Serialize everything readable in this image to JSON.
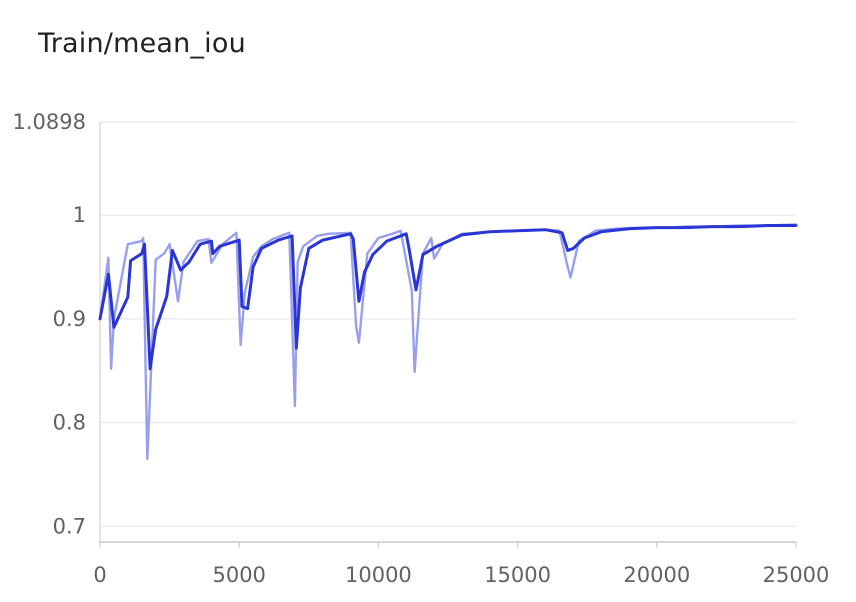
{
  "title": "Train/mean_iou",
  "chart_data": {
    "type": "line",
    "title": "Train/mean_iou",
    "xlabel": "",
    "ylabel": "",
    "xlim": [
      0,
      25000
    ],
    "ylim": [
      0.685,
      1.0898
    ],
    "x_ticks": [
      "0",
      "5000",
      "10000",
      "15000",
      "20000",
      "25000"
    ],
    "x_tick_values": [
      0,
      5000,
      10000,
      15000,
      20000,
      25000
    ],
    "y_ticks": [
      "1.0898",
      "1",
      "0.9",
      "0.8",
      "0.7"
    ],
    "y_tick_values": [
      1.0898,
      1.0,
      0.9,
      0.8,
      0.7
    ],
    "grid": true,
    "colors": {
      "raw": "#98a0ee",
      "smoothed": "#2b35d6",
      "grid": "#e4e4e4",
      "axis": "#c8c8c8"
    },
    "series": [
      {
        "role": "raw",
        "x": [
          0,
          300,
          400,
          500,
          1000,
          1500,
          1550,
          1700,
          1800,
          2000,
          2300,
          2500,
          2800,
          3000,
          3500,
          3900,
          4000,
          4400,
          4900,
          5050,
          5200,
          5500,
          5800,
          6200,
          6800,
          7000,
          7100,
          7300,
          7800,
          8200,
          9000,
          9200,
          9300,
          9600,
          10000,
          10500,
          10800,
          11200,
          11300,
          11600,
          11900,
          12000,
          12300,
          13000,
          14000,
          15000,
          16000,
          16500,
          16800,
          16900,
          17200,
          17800,
          18500,
          19500,
          20000,
          20500,
          21000,
          22000,
          23000,
          24000,
          25000
        ],
        "y": [
          0.9,
          0.959,
          0.852,
          0.9,
          0.972,
          0.975,
          0.978,
          0.765,
          0.828,
          0.957,
          0.963,
          0.972,
          0.917,
          0.955,
          0.975,
          0.977,
          0.954,
          0.972,
          0.983,
          0.875,
          0.925,
          0.96,
          0.97,
          0.977,
          0.983,
          0.816,
          0.955,
          0.97,
          0.98,
          0.982,
          0.983,
          0.893,
          0.877,
          0.963,
          0.978,
          0.982,
          0.985,
          0.927,
          0.849,
          0.963,
          0.978,
          0.958,
          0.972,
          0.982,
          0.984,
          0.985,
          0.986,
          0.985,
          0.95,
          0.94,
          0.975,
          0.985,
          0.987,
          0.988,
          0.988,
          0.988,
          0.989,
          0.989,
          0.99,
          0.99,
          0.991
        ]
      },
      {
        "role": "smoothed",
        "x": [
          0,
          300,
          500,
          1000,
          1100,
          1500,
          1600,
          1800,
          2000,
          2400,
          2600,
          2900,
          3200,
          3600,
          4000,
          4050,
          4300,
          4900,
          5000,
          5100,
          5300,
          5500,
          5800,
          6400,
          6900,
          7050,
          7200,
          7500,
          8000,
          9000,
          9100,
          9300,
          9500,
          9800,
          10300,
          11000,
          11100,
          11350,
          11600,
          12100,
          13000,
          14000,
          15000,
          16000,
          16600,
          16800,
          17000,
          17400,
          18000,
          19000,
          20000,
          21000,
          22000,
          23000,
          24000,
          25000
        ],
        "y": [
          0.9,
          0.943,
          0.892,
          0.921,
          0.956,
          0.963,
          0.972,
          0.852,
          0.89,
          0.922,
          0.966,
          0.947,
          0.955,
          0.972,
          0.975,
          0.963,
          0.97,
          0.975,
          0.976,
          0.912,
          0.91,
          0.95,
          0.968,
          0.976,
          0.98,
          0.872,
          0.93,
          0.968,
          0.976,
          0.982,
          0.977,
          0.917,
          0.945,
          0.962,
          0.975,
          0.982,
          0.968,
          0.928,
          0.962,
          0.97,
          0.981,
          0.984,
          0.985,
          0.986,
          0.983,
          0.966,
          0.968,
          0.978,
          0.984,
          0.987,
          0.988,
          0.988,
          0.989,
          0.989,
          0.99,
          0.99
        ]
      }
    ]
  }
}
